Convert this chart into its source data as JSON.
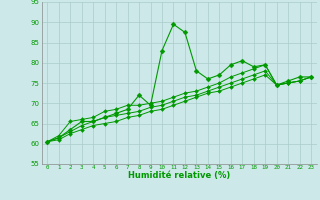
{
  "background_color": "#cce8e8",
  "grid_color": "#aacccc",
  "line_color": "#009900",
  "marker_color": "#009900",
  "xlabel": "Humidité relative (%)",
  "xlabel_color": "#009900",
  "xlim": [
    -0.5,
    23.5
  ],
  "ylim": [
    55,
    95
  ],
  "yticks": [
    55,
    60,
    65,
    70,
    75,
    80,
    85,
    90,
    95
  ],
  "xticks": [
    0,
    1,
    2,
    3,
    4,
    5,
    6,
    7,
    8,
    9,
    10,
    11,
    12,
    13,
    14,
    15,
    16,
    17,
    18,
    19,
    20,
    21,
    22,
    23
  ],
  "series": [
    [
      60.5,
      61.5,
      63.5,
      65.5,
      65.5,
      66.5,
      67.5,
      68.5,
      72.0,
      69.5,
      83.0,
      89.5,
      87.5,
      78.0,
      76.0,
      77.0,
      79.5,
      80.5,
      79.0,
      79.5,
      74.5,
      75.5,
      76.5,
      76.5
    ],
    [
      60.5,
      61.0,
      62.5,
      63.5,
      64.5,
      65.0,
      65.5,
      66.5,
      67.0,
      68.0,
      68.5,
      69.5,
      70.5,
      71.5,
      72.5,
      73.0,
      74.0,
      75.0,
      76.0,
      77.0,
      74.5,
      75.0,
      75.5,
      76.5
    ],
    [
      60.5,
      61.5,
      63.0,
      64.5,
      65.5,
      66.5,
      67.0,
      67.5,
      68.0,
      69.0,
      69.5,
      70.5,
      71.5,
      72.0,
      73.0,
      74.0,
      75.0,
      76.0,
      77.0,
      78.0,
      74.5,
      75.0,
      75.5,
      76.5
    ],
    [
      60.5,
      62.0,
      65.5,
      66.0,
      66.5,
      68.0,
      68.5,
      69.5,
      69.5,
      70.0,
      70.5,
      71.5,
      72.5,
      73.0,
      74.0,
      75.0,
      76.5,
      77.5,
      78.5,
      79.5,
      74.5,
      75.0,
      75.5,
      76.5
    ]
  ]
}
